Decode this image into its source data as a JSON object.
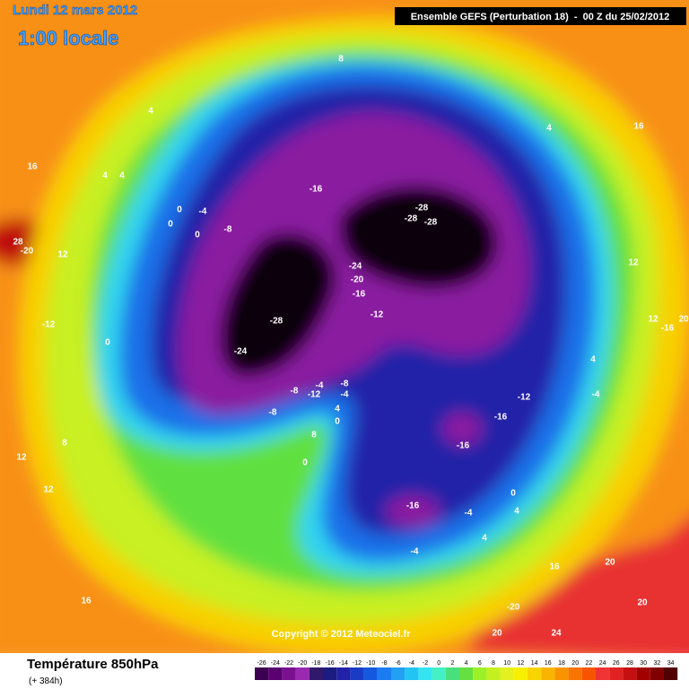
{
  "header": {
    "date": "Lundi 12 mars 2012",
    "time": "1:00 locale",
    "model": "Ensemble GEFS (Perturbation 18)  -  00 Z du 25/02/2012"
  },
  "copyright": "Copyright © 2012 Meteociel.fr",
  "footer": {
    "title": "Température 850hPa",
    "subtitle": "(+ 384h)"
  },
  "legend": {
    "values": [
      -26,
      -24,
      -22,
      -20,
      -18,
      -16,
      -14,
      -12,
      -10,
      -8,
      -6,
      -4,
      -2,
      0,
      2,
      4,
      6,
      8,
      10,
      12,
      14,
      16,
      18,
      20,
      22,
      24,
      26,
      28,
      30,
      32,
      34
    ],
    "colors": [
      "#3c0050",
      "#5a0070",
      "#7a1090",
      "#9a28b0",
      "#30186a",
      "#1c1c80",
      "#2222a8",
      "#1a3cc4",
      "#1458e0",
      "#1a7cf0",
      "#22a0f4",
      "#22c4f4",
      "#34e4f0",
      "#44f0c4",
      "#48e07c",
      "#64e040",
      "#9cf028",
      "#c4f020",
      "#e4f020",
      "#f8f000",
      "#f8d400",
      "#f8b400",
      "#f89400",
      "#f87400",
      "#f85400",
      "#f03434",
      "#e02222",
      "#c41010",
      "#a00000",
      "#800000",
      "#500000"
    ]
  },
  "map_labels": [
    "-16",
    "-28",
    "-28",
    "-28",
    "-24",
    "-20",
    "-16",
    "-12",
    "-28",
    "-24",
    "-12",
    "-16",
    "-16",
    "-16",
    "-8",
    "-12",
    "-4",
    "-8",
    "-4",
    "-8",
    "-4",
    "-4",
    "0",
    "4",
    "4",
    "20",
    "24",
    "20",
    "-20",
    "20",
    "16",
    "8",
    "4",
    "16",
    "4",
    "4",
    "0",
    "-4",
    "0",
    "0",
    "-8",
    "28",
    "12",
    "-12",
    "0",
    "8",
    "12",
    "12",
    "16",
    "16",
    "4",
    "12",
    "12",
    "20",
    "4",
    "-4",
    "8",
    "0",
    "4",
    "0",
    "-20",
    "-16"
  ]
}
